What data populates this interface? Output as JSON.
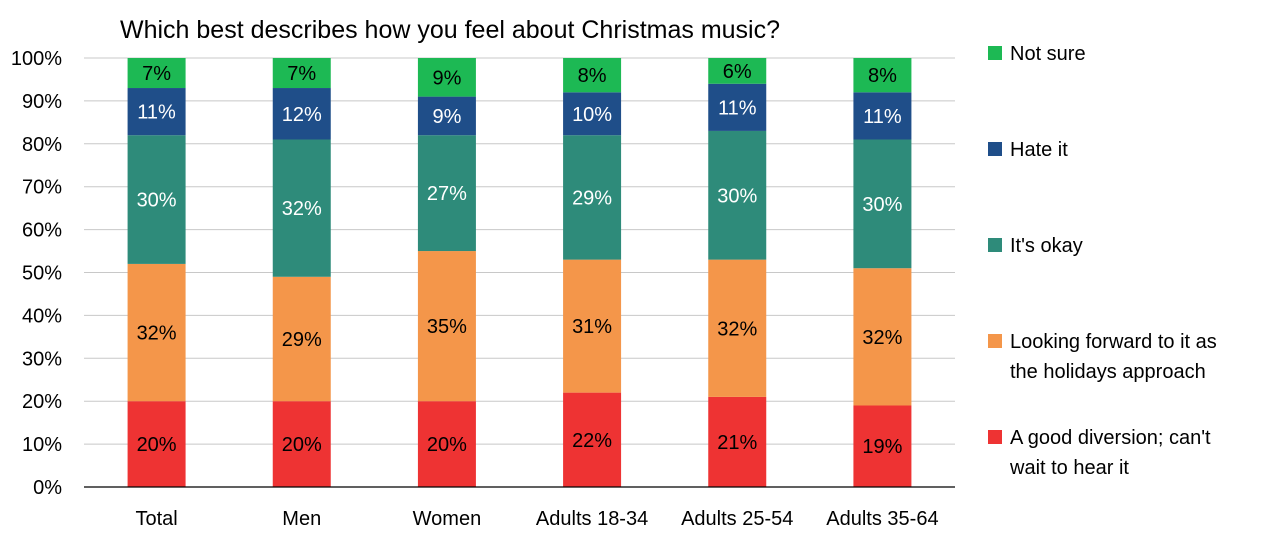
{
  "chart_data": {
    "type": "bar",
    "stacked": true,
    "title": "Which best describes how you feel about Christmas music?",
    "categories": [
      "Total",
      "Men",
      "Women",
      "Adults 18-34",
      "Adults 25-54",
      "Adults 35-64"
    ],
    "ylim": [
      0,
      100
    ],
    "yticks": [
      "0%",
      "10%",
      "20%",
      "30%",
      "40%",
      "50%",
      "60%",
      "70%",
      "80%",
      "90%",
      "100%"
    ],
    "grid": true,
    "legend_position": "right",
    "series": [
      {
        "name": "A good diversion; can't wait to hear it",
        "legend_lines": [
          "A good diversion; can't",
          "wait to hear it"
        ],
        "color": "#EE3333",
        "label_color": "#000000",
        "values": [
          20,
          20,
          20,
          22,
          21,
          19
        ],
        "labels": [
          "20%",
          "20%",
          "20%",
          "22%",
          "21%",
          "19%"
        ]
      },
      {
        "name": "Looking forward to it as the holidays approach",
        "legend_lines": [
          "Looking forward to it as",
          "the holidays approach"
        ],
        "color": "#F4964A",
        "label_color": "#000000",
        "values": [
          32,
          29,
          35,
          31,
          32,
          32
        ],
        "labels": [
          "32%",
          "29%",
          "35%",
          "31%",
          "32%",
          "32%"
        ]
      },
      {
        "name": "It's okay",
        "legend_lines": [
          "It's okay"
        ],
        "color": "#2E8B7A",
        "label_color": "#ffffff",
        "values": [
          30,
          32,
          27,
          29,
          30,
          30
        ],
        "labels": [
          "30%",
          "32%",
          "27%",
          "29%",
          "30%",
          "30%"
        ]
      },
      {
        "name": "Hate it",
        "legend_lines": [
          "Hate it"
        ],
        "color": "#1F4E89",
        "label_color": "#ffffff",
        "values": [
          11,
          12,
          9,
          10,
          11,
          11
        ],
        "labels": [
          "11%",
          "12%",
          "9%",
          "10%",
          "11%",
          "11%"
        ]
      },
      {
        "name": "Not sure",
        "legend_lines": [
          "Not sure"
        ],
        "color": "#1DB954",
        "label_color": "#000000",
        "values": [
          7,
          7,
          9,
          8,
          6,
          8
        ],
        "labels": [
          "7%",
          "7%",
          "9%",
          "8%",
          "6%",
          "8%"
        ]
      }
    ]
  }
}
